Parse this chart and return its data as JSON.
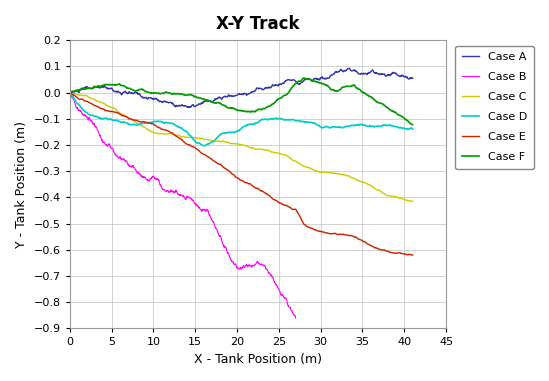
{
  "title": "X-Y Track",
  "xlabel": "X - Tank Position (m)",
  "ylabel": "Y - Tank Position (m)",
  "xlim": [
    0,
    45
  ],
  "ylim": [
    -0.9,
    0.2
  ],
  "xticks": [
    0,
    5,
    10,
    15,
    20,
    25,
    30,
    35,
    40,
    45
  ],
  "yticks": [
    -0.9,
    -0.8,
    -0.7,
    -0.6,
    -0.5,
    -0.4,
    -0.3,
    -0.2,
    -0.1,
    0.0,
    0.1,
    0.2
  ],
  "cases": {
    "Case A": {
      "color": "#3333aa",
      "linewidth": 1.0
    },
    "Case B": {
      "color": "#ff00ff",
      "linewidth": 0.8
    },
    "Case C": {
      "color": "#cccc00",
      "linewidth": 1.0
    },
    "Case D": {
      "color": "#00cccc",
      "linewidth": 1.2
    },
    "Case E": {
      "color": "#cc2200",
      "linewidth": 1.0
    },
    "Case F": {
      "color": "#009900",
      "linewidth": 1.2
    }
  },
  "plot_bg": "#ffffff",
  "fig_bg": "#ffffff",
  "grid_color": "#c0c0c0",
  "title_fontsize": 12,
  "label_fontsize": 9,
  "tick_fontsize": 8,
  "legend_fontsize": 8
}
